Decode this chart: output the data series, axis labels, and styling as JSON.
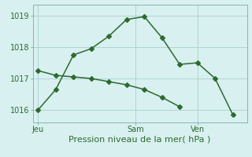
{
  "line1_x": [
    0,
    1,
    2,
    3,
    4,
    5,
    6,
    7,
    8,
    9,
    10,
    11
  ],
  "line1_y": [
    1016.0,
    1016.65,
    1017.75,
    1017.95,
    1018.35,
    1018.88,
    1018.97,
    1018.3,
    1017.45,
    1017.5,
    1017.0,
    1015.85
  ],
  "line2_x": [
    0,
    1,
    2,
    3,
    4,
    5,
    6,
    7,
    8
  ],
  "line2_y": [
    1017.25,
    1017.1,
    1017.05,
    1017.0,
    1016.9,
    1016.8,
    1016.65,
    1016.4,
    1016.1
  ],
  "line_color": "#2d6a2d",
  "bg_color": "#d8f0f0",
  "grid_color": "#b0d4d4",
  "xlabel": "Pression niveau de la mer( hPa )",
  "ylim": [
    1015.6,
    1019.35
  ],
  "yticks": [
    1016,
    1017,
    1018,
    1019
  ],
  "xtick_labels": [
    "Jeu",
    "Sam",
    "Ven"
  ],
  "xtick_positions": [
    0,
    5.5,
    9.0
  ],
  "vline_x": [
    0,
    5.5,
    9.0
  ],
  "marker": "D",
  "markersize": 3,
  "linewidth": 1.1,
  "xlabel_fontsize": 8,
  "tick_fontsize": 7,
  "xlim": [
    -0.3,
    11.8
  ]
}
